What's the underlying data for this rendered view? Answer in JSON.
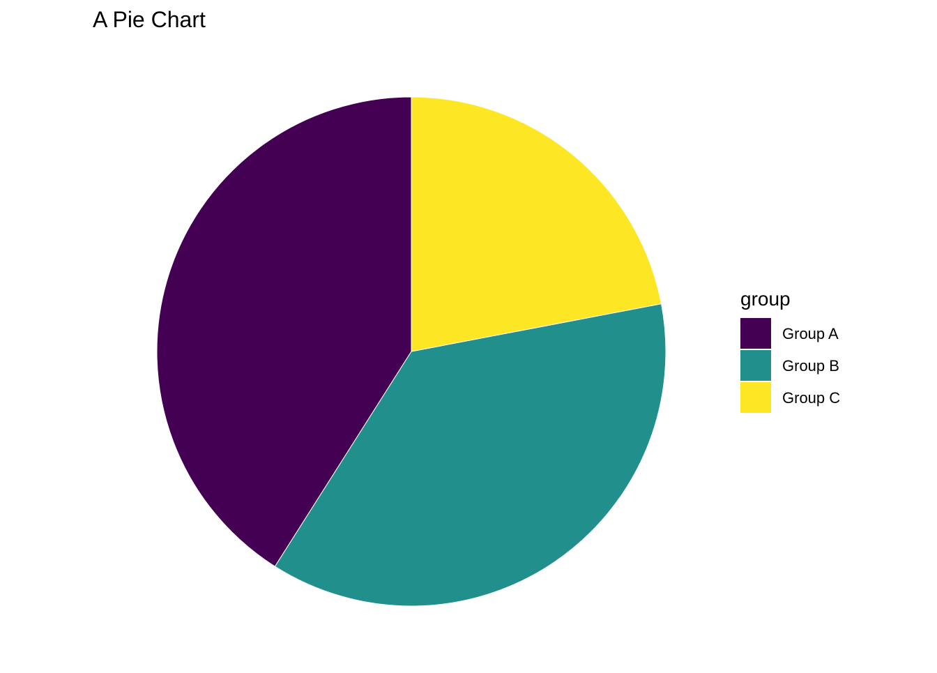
{
  "chart_data": {
    "type": "pie",
    "title": "A Pie Chart",
    "legend": {
      "title": "group",
      "position": "right"
    },
    "slices": [
      {
        "label": "Group A",
        "value": 41,
        "color": "#440154"
      },
      {
        "label": "Group B",
        "value": 37,
        "color": "#21908C"
      },
      {
        "label": "Group C",
        "value": 22,
        "color": "#FDE725"
      }
    ]
  }
}
